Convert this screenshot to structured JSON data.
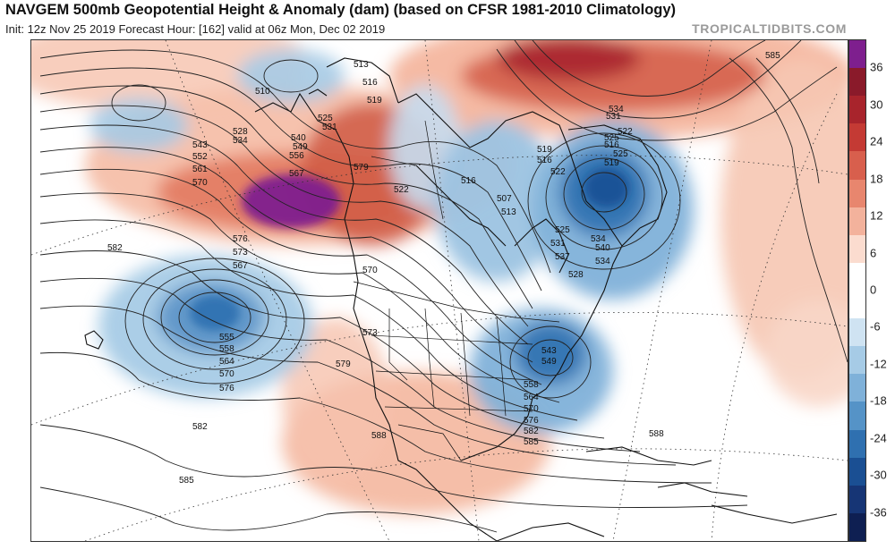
{
  "header": {
    "title": "NAVGEM 500mb Geopotential Height & Anomaly (dam) (based on CFSR 1981-2010 Climatology)",
    "subtitle": "Init: 12z Nov 25 2019   Forecast Hour: [162]   valid at 06z Mon, Dec 02 2019",
    "brand": "TROPICALTIDBITS.COM"
  },
  "colorbar": {
    "ticks": [
      "36",
      "30",
      "24",
      "18",
      "12",
      "6",
      "0",
      "-6",
      "-12",
      "-18",
      "-24",
      "-30",
      "-36"
    ],
    "colors": [
      "#7e1f8e",
      "#8a1a2a",
      "#a8242c",
      "#c43a34",
      "#d85f4d",
      "#e8866e",
      "#f3b29c",
      "#fbdccf",
      "#ffffff",
      "#ffffff",
      "#cfe3f2",
      "#a6cbe6",
      "#7fb1d9",
      "#5593c7",
      "#2f70b0",
      "#1a4f93",
      "#163575",
      "#0e1f52"
    ]
  },
  "contour_labels": [
    {
      "text": "510"
    },
    {
      "text": "513"
    },
    {
      "text": "516"
    },
    {
      "text": "519"
    },
    {
      "text": "525"
    },
    {
      "text": "531"
    },
    {
      "text": "528"
    },
    {
      "text": "534"
    },
    {
      "text": "540"
    },
    {
      "text": "543"
    },
    {
      "text": "549"
    },
    {
      "text": "552"
    },
    {
      "text": "556"
    },
    {
      "text": "561"
    },
    {
      "text": "567"
    },
    {
      "text": "570"
    },
    {
      "text": "579"
    },
    {
      "text": "582"
    },
    {
      "text": "576"
    },
    {
      "text": "573"
    },
    {
      "text": "567"
    },
    {
      "text": "570"
    },
    {
      "text": "555"
    },
    {
      "text": "558"
    },
    {
      "text": "564"
    },
    {
      "text": "570"
    },
    {
      "text": "576"
    },
    {
      "text": "573"
    },
    {
      "text": "579"
    },
    {
      "text": "582"
    },
    {
      "text": "588"
    },
    {
      "text": "585"
    },
    {
      "text": "522"
    },
    {
      "text": "519"
    },
    {
      "text": "516"
    },
    {
      "text": "522"
    },
    {
      "text": "507"
    },
    {
      "text": "513"
    },
    {
      "text": "516"
    },
    {
      "text": "525"
    },
    {
      "text": "531"
    },
    {
      "text": "537"
    },
    {
      "text": "534"
    },
    {
      "text": "540"
    },
    {
      "text": "534"
    },
    {
      "text": "525"
    },
    {
      "text": "522"
    },
    {
      "text": "528"
    },
    {
      "text": "543"
    },
    {
      "text": "549"
    },
    {
      "text": "558"
    },
    {
      "text": "564"
    },
    {
      "text": "570"
    },
    {
      "text": "576"
    },
    {
      "text": "582"
    },
    {
      "text": "585"
    },
    {
      "text": "588"
    },
    {
      "text": "585"
    },
    {
      "text": "516"
    },
    {
      "text": "531"
    },
    {
      "text": "534"
    },
    {
      "text": "525"
    },
    {
      "text": "519"
    }
  ]
}
